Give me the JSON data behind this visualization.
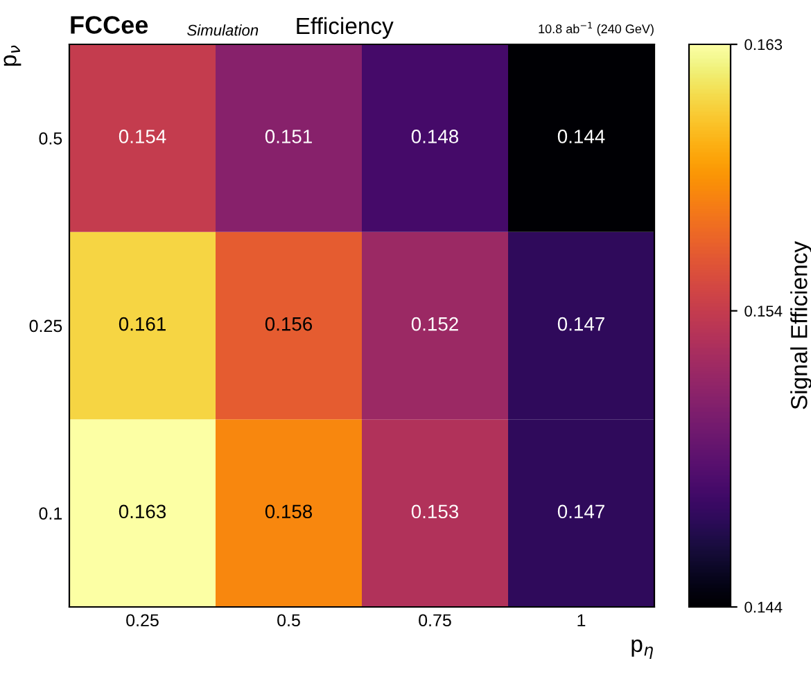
{
  "chart_data": {
    "type": "heatmap",
    "title": "FCCee",
    "subtitle": "Simulation",
    "annotations": [
      "Efficiency",
      "10.8 ab$^{−1}$ (240 GeV)"
    ],
    "xlabel": "p$_{η}$",
    "ylabel": "p$_{ν}$",
    "clabel": "Signal Efficiency",
    "categories": [
      "0.25",
      "0.5",
      "0.75",
      "1"
    ],
    "y_categories": [
      "0.5",
      "0.25",
      "0.1"
    ],
    "cells": [
      [
        0.154,
        0.151,
        0.148,
        0.144
      ],
      [
        0.161,
        0.156,
        0.152,
        0.147
      ],
      [
        0.163,
        0.158,
        0.153,
        0.147
      ]
    ],
    "clim": [
      0.144,
      0.163
    ],
    "cticks": [
      0.144,
      0.154,
      0.163
    ],
    "data_labels": true
  }
}
